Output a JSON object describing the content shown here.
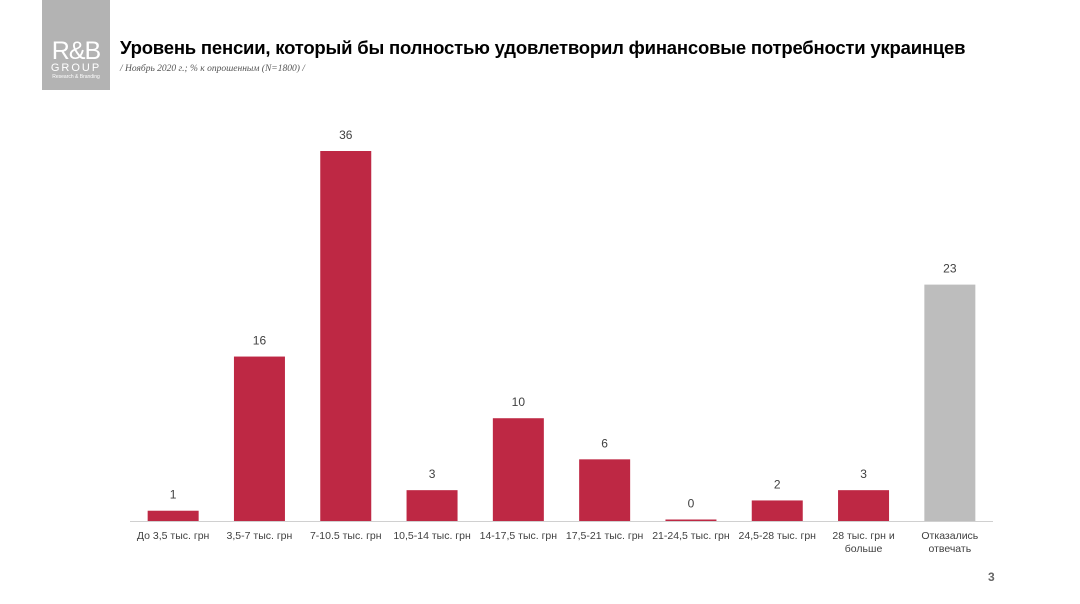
{
  "logo": {
    "name": "R&B",
    "group": "GROUP",
    "tagline": "Research & Branding"
  },
  "page_number": "3",
  "chart_data": {
    "type": "bar",
    "title": "Уровень пенсии, который бы полностью удовлетворил финансовые потребности украинцев",
    "subtitle": "/ Ноябрь 2020 г.; % к опрошенным (N=1800) /",
    "categories": [
      "До 3,5 тыс. грн",
      "3,5-7 тыс. грн",
      "7-10.5 тыс. грн",
      "10,5-14 тыс. грн",
      "14-17,5 тыс. грн",
      "17,5-21 тыс. грн",
      "21-24,5 тыс. грн",
      "24,5-28 тыс. грн",
      "28 тыс. грн и\nбольше",
      "Отказались\nотвечать"
    ],
    "values": [
      1,
      16,
      36,
      3,
      10,
      6,
      0,
      2,
      3,
      23
    ],
    "colors": [
      "#be2844",
      "#be2844",
      "#be2844",
      "#be2844",
      "#be2844",
      "#be2844",
      "#be2844",
      "#be2844",
      "#be2844",
      "#bdbdbd"
    ]
  }
}
